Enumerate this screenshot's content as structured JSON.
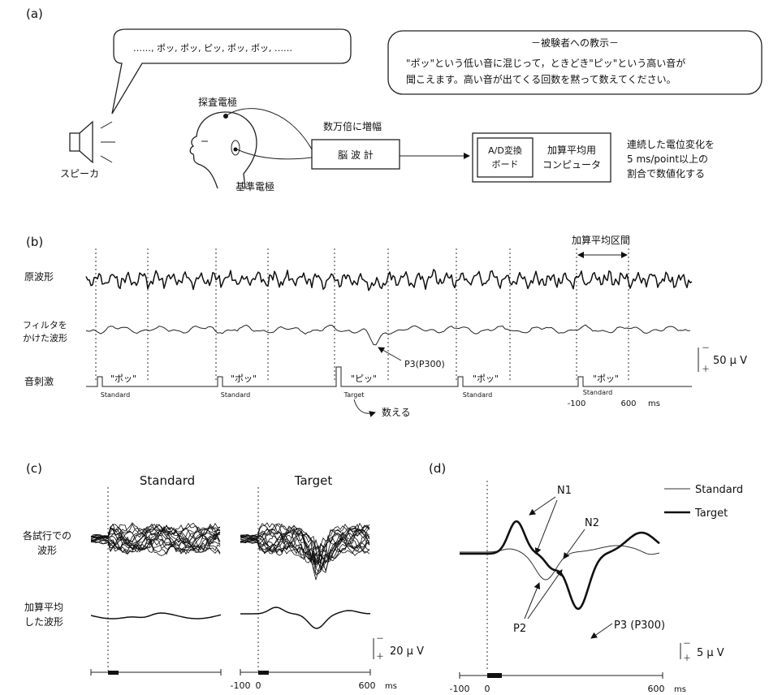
{
  "panel_a": {
    "label": "(a)",
    "speech_bubble": "……, ポッ, ポッ, ピッ, ポッ, ポッ, ……",
    "instruction_title": "－被験者への教示－",
    "instruction_line1": "\"ポッ\"という低い音に混じって，ときどき\"ピッ\"という高い音が",
    "instruction_line2": "聞こえます。高い音が出てくる回数を黙って数えてください。",
    "speaker_label": "スピーカ",
    "probe_electrode": "探査電極",
    "reference_electrode": "基準電極",
    "amplify_label": "数万倍に増幅",
    "eeg_box": "脳 波 計",
    "ad_box_line1": "A/D変換",
    "ad_box_line2": "ボード",
    "pc_box_line1": "加算平均用",
    "pc_box_line2": "コンピュータ",
    "digitize_line1": "連続した電位変化を",
    "digitize_line2": "5 ms/point以上の",
    "digitize_line3": "割合で数値化する"
  },
  "panel_b": {
    "label": "(b)",
    "row_raw": "原波形",
    "row_filtered_line1": "フィルタを",
    "row_filtered_line2": "かけた波形",
    "row_stimulus": "音刺激",
    "averaging_window": "加算平均区間",
    "p3_label": "P3(P300)",
    "scale_minus": "－",
    "scale_plus": "＋",
    "scale_value": "50 μ V",
    "count_label": "数える",
    "stimuli": [
      {
        "sound": "\"ポッ\"",
        "type": "Standard"
      },
      {
        "sound": "\"ポッ\"",
        "type": "Standard"
      },
      {
        "sound": "\"ピッ\"",
        "type": "Target"
      },
      {
        "sound": "\"ポッ\"",
        "type": "Standard"
      },
      {
        "sound": "\"ポッ\"",
        "type": "Standard"
      }
    ],
    "axis_start": "-100",
    "axis_end": "600",
    "axis_unit": "ms"
  },
  "panel_c": {
    "label": "(c)",
    "col_standard": "Standard",
    "col_target": "Target",
    "row_trials_line1": "各試行での",
    "row_trials_line2": "波形",
    "row_avg_line1": "加算平均",
    "row_avg_line2": "した波形",
    "scale_minus": "－",
    "scale_plus": "＋",
    "scale_value": "20 μ V",
    "tick_a": "-100",
    "tick_b": "0",
    "tick_c": "600",
    "unit": "ms"
  },
  "panel_d": {
    "label": "(d)",
    "legend_standard": "Standard",
    "legend_target": "Target",
    "label_n1": "N1",
    "label_n2": "N2",
    "label_p2": "P2",
    "label_p3": "P3 (P300)",
    "scale_minus": "－",
    "scale_plus": "＋",
    "scale_value": "5 μ V",
    "tick_a": "-100",
    "tick_b": "0",
    "tick_c": "600",
    "unit": "ms"
  },
  "colors": {
    "ink": "#111111",
    "background": "#ffffff"
  }
}
